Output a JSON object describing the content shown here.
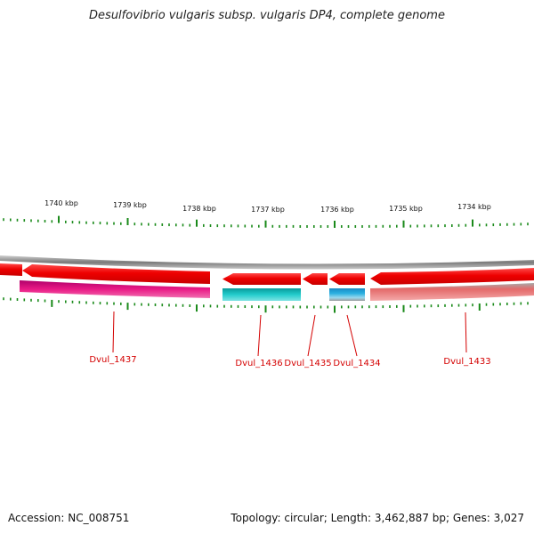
{
  "title": "Desulfovibrio vulgaris subsp. vulgaris DP4, complete genome",
  "scale_labels": [
    "1740 kbp",
    "1739 kbp",
    "1738 kbp",
    "1737 kbp",
    "1736 kbp",
    "1735 kbp",
    "1734 kbp"
  ],
  "genes": [
    {
      "name": "Dvul_1437",
      "label": "Dvul_1437"
    },
    {
      "name": "Dvul_1436",
      "label": "Dvul_1436"
    },
    {
      "name": "Dvul_1435",
      "label": "Dvul_1435"
    },
    {
      "name": "Dvul_1434",
      "label": "Dvul_1434"
    },
    {
      "name": "Dvul_1433",
      "label": "Dvul_1433"
    }
  ],
  "colors": {
    "cds_arrow": "#ee0000",
    "backbone": "#8a8a8a",
    "tick": "#1a8a1a",
    "label": "#d40000",
    "dvul_1437_band": "#e0157a",
    "dvul_1436_band": "#1fc6c6",
    "dvul_1434_band": "#2ab0e0",
    "dvul_1433_band": "#e88080"
  },
  "footer": {
    "accession": "Accession: NC_008751",
    "topology": "Topology: circular; Length: 3,462,887 bp; Genes: 3,027"
  }
}
